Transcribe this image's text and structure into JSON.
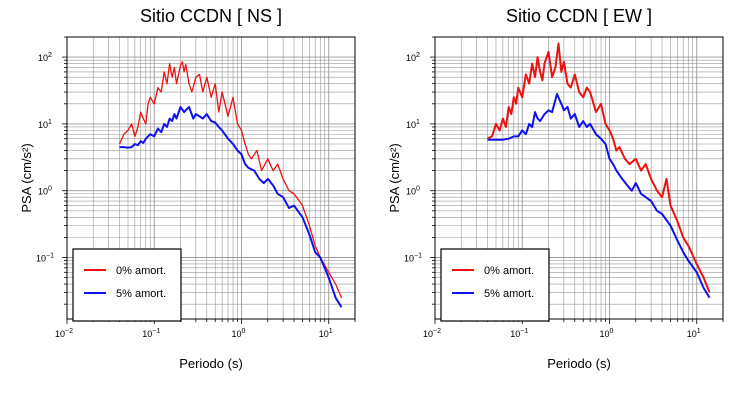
{
  "colors": {
    "red": "#ee1111",
    "blue": "#1111ee",
    "grid": "#999999",
    "minor_grid": "#c8c8c8"
  },
  "chart_data": [
    {
      "type": "line",
      "title": "Sitio CCDN [ NS ]",
      "xlabel": "Periodo (s)",
      "ylabel": "PSA (cm/s²)",
      "xscale": "log",
      "yscale": "log",
      "xlim": [
        0.01,
        20
      ],
      "ylim": [
        0.012,
        200
      ],
      "x_ticks": [
        {
          "value": 0.01,
          "base": "10",
          "exp": "−2"
        },
        {
          "value": 0.1,
          "base": "10",
          "exp": "−1"
        },
        {
          "value": 1,
          "base": "10",
          "exp": "0"
        },
        {
          "value": 10,
          "base": "10",
          "exp": "1"
        }
      ],
      "y_ticks": [
        {
          "value": 0.1,
          "base": "10",
          "exp": "−1"
        },
        {
          "value": 1,
          "base": "10",
          "exp": "0"
        },
        {
          "value": 10,
          "base": "10",
          "exp": "1"
        },
        {
          "value": 100,
          "base": "10",
          "exp": "2"
        }
      ],
      "grid": true,
      "legend_position": "bottom-left",
      "series": [
        {
          "name": "0% amort.",
          "color": "#ee1111",
          "x": [
            0.04,
            0.045,
            0.05,
            0.055,
            0.06,
            0.065,
            0.07,
            0.075,
            0.08,
            0.085,
            0.09,
            0.1,
            0.11,
            0.12,
            0.13,
            0.14,
            0.15,
            0.16,
            0.17,
            0.18,
            0.19,
            0.2,
            0.21,
            0.22,
            0.23,
            0.25,
            0.27,
            0.3,
            0.33,
            0.36,
            0.4,
            0.45,
            0.5,
            0.55,
            0.6,
            0.7,
            0.8,
            0.9,
            1.0,
            1.1,
            1.2,
            1.3,
            1.5,
            1.7,
            2.0,
            2.3,
            2.6,
            3.0,
            3.5,
            4.0,
            5.0,
            6.0,
            7.0,
            8.0,
            10.0,
            12.0,
            14.0
          ],
          "values": [
            5.0,
            7.0,
            8.0,
            10.0,
            6.5,
            9.0,
            15.0,
            12.0,
            10.0,
            20.0,
            25.0,
            20.0,
            35.0,
            30.0,
            60.0,
            40.0,
            80.0,
            50.0,
            70.0,
            40.0,
            55.0,
            75.0,
            85.0,
            60.0,
            78.0,
            40.0,
            30.0,
            50.0,
            55.0,
            30.0,
            50.0,
            25.0,
            40.0,
            15.0,
            30.0,
            13.0,
            25.0,
            10.0,
            8.0,
            5.0,
            3.5,
            3.0,
            4.0,
            2.0,
            3.0,
            2.0,
            2.5,
            1.5,
            1.0,
            0.9,
            0.6,
            0.3,
            0.15,
            0.1,
            0.06,
            0.04,
            0.025
          ]
        },
        {
          "name": "5% amort.",
          "color": "#1111ee",
          "x": [
            0.04,
            0.045,
            0.05,
            0.055,
            0.06,
            0.065,
            0.07,
            0.075,
            0.08,
            0.09,
            0.1,
            0.11,
            0.12,
            0.13,
            0.14,
            0.15,
            0.16,
            0.17,
            0.18,
            0.2,
            0.22,
            0.25,
            0.28,
            0.3,
            0.33,
            0.36,
            0.4,
            0.45,
            0.5,
            0.55,
            0.6,
            0.7,
            0.8,
            0.9,
            1.0,
            1.1,
            1.2,
            1.4,
            1.6,
            1.8,
            2.0,
            2.3,
            2.6,
            3.0,
            3.5,
            4.0,
            5.0,
            6.0,
            7.0,
            8.0,
            10.0,
            12.0,
            14.0
          ],
          "values": [
            4.5,
            4.5,
            4.4,
            4.5,
            5.0,
            4.8,
            5.5,
            5.2,
            6.0,
            7.0,
            6.5,
            8.5,
            7.5,
            10.0,
            9.0,
            12.0,
            11.0,
            14.0,
            12.0,
            18.0,
            15.0,
            18.0,
            12.0,
            14.0,
            13.0,
            12.0,
            14.0,
            11.0,
            10.5,
            9.0,
            8.0,
            6.0,
            5.0,
            4.0,
            3.5,
            2.5,
            2.2,
            2.0,
            1.5,
            1.3,
            1.5,
            1.2,
            0.9,
            0.8,
            0.55,
            0.6,
            0.4,
            0.22,
            0.12,
            0.1,
            0.05,
            0.025,
            0.018
          ]
        }
      ]
    },
    {
      "type": "line",
      "title": "Sitio CCDN [ EW ]",
      "xlabel": "Periodo (s)",
      "ylabel": "PSA (cm/s²)",
      "xscale": "log",
      "yscale": "log",
      "xlim": [
        0.01,
        20
      ],
      "ylim": [
        0.012,
        200
      ],
      "x_ticks": [
        {
          "value": 0.01,
          "base": "10",
          "exp": "−2"
        },
        {
          "value": 0.1,
          "base": "10",
          "exp": "−1"
        },
        {
          "value": 1,
          "base": "10",
          "exp": "0"
        },
        {
          "value": 10,
          "base": "10",
          "exp": "1"
        }
      ],
      "y_ticks": [
        {
          "value": 0.1,
          "base": "10",
          "exp": "−1"
        },
        {
          "value": 1,
          "base": "10",
          "exp": "0"
        },
        {
          "value": 10,
          "base": "10",
          "exp": "1"
        },
        {
          "value": 100,
          "base": "10",
          "exp": "2"
        }
      ],
      "grid": true,
      "legend_position": "bottom-left",
      "series": [
        {
          "name": "0% amort.",
          "color": "#ee1111",
          "x": [
            0.04,
            0.045,
            0.05,
            0.055,
            0.06,
            0.065,
            0.07,
            0.075,
            0.08,
            0.085,
            0.09,
            0.1,
            0.11,
            0.12,
            0.13,
            0.14,
            0.15,
            0.16,
            0.17,
            0.18,
            0.2,
            0.22,
            0.24,
            0.26,
            0.28,
            0.3,
            0.33,
            0.36,
            0.4,
            0.45,
            0.5,
            0.55,
            0.6,
            0.7,
            0.8,
            0.9,
            1.0,
            1.1,
            1.2,
            1.3,
            1.5,
            1.7,
            2.0,
            2.3,
            2.6,
            3.0,
            3.5,
            4.0,
            4.5,
            5.0,
            6.0,
            7.0,
            8.0,
            10.0,
            12.0,
            14.0
          ],
          "values": [
            6.0,
            6.5,
            10.0,
            8.0,
            12.0,
            9.0,
            18.0,
            14.0,
            25.0,
            20.0,
            35.0,
            25.0,
            55.0,
            40.0,
            80.0,
            50.0,
            100.0,
            60.0,
            45.0,
            80.0,
            120.0,
            50.0,
            70.0,
            160.0,
            60.0,
            85.0,
            40.0,
            35.0,
            55.0,
            30.0,
            25.0,
            35.0,
            30.0,
            15.0,
            20.0,
            10.0,
            8.0,
            6.0,
            4.0,
            4.5,
            3.0,
            2.5,
            3.0,
            2.0,
            2.5,
            1.5,
            1.0,
            0.8,
            1.5,
            0.6,
            0.35,
            0.2,
            0.15,
            0.08,
            0.05,
            0.03
          ]
        },
        {
          "name": "5% amort.",
          "color": "#1111ee",
          "x": [
            0.04,
            0.05,
            0.06,
            0.07,
            0.08,
            0.09,
            0.1,
            0.11,
            0.12,
            0.13,
            0.14,
            0.15,
            0.16,
            0.18,
            0.2,
            0.22,
            0.25,
            0.28,
            0.3,
            0.33,
            0.36,
            0.4,
            0.45,
            0.5,
            0.55,
            0.6,
            0.7,
            0.8,
            0.9,
            1.0,
            1.1,
            1.2,
            1.4,
            1.6,
            1.8,
            2.0,
            2.3,
            2.6,
            3.0,
            3.5,
            4.0,
            5.0,
            6.0,
            7.0,
            8.0,
            10.0,
            12.0,
            14.0
          ],
          "values": [
            5.8,
            5.8,
            5.8,
            6.0,
            6.5,
            6.5,
            8.0,
            7.0,
            10.0,
            9.0,
            15.0,
            12.0,
            11.0,
            14.0,
            16.0,
            15.0,
            28.0,
            20.0,
            16.0,
            18.0,
            12.0,
            14.0,
            9.0,
            11.0,
            9.0,
            10.0,
            7.0,
            6.0,
            5.0,
            3.0,
            2.5,
            2.0,
            1.5,
            1.2,
            1.0,
            1.3,
            0.9,
            0.8,
            0.7,
            0.5,
            0.45,
            0.3,
            0.18,
            0.12,
            0.09,
            0.06,
            0.035,
            0.025
          ]
        }
      ]
    }
  ]
}
